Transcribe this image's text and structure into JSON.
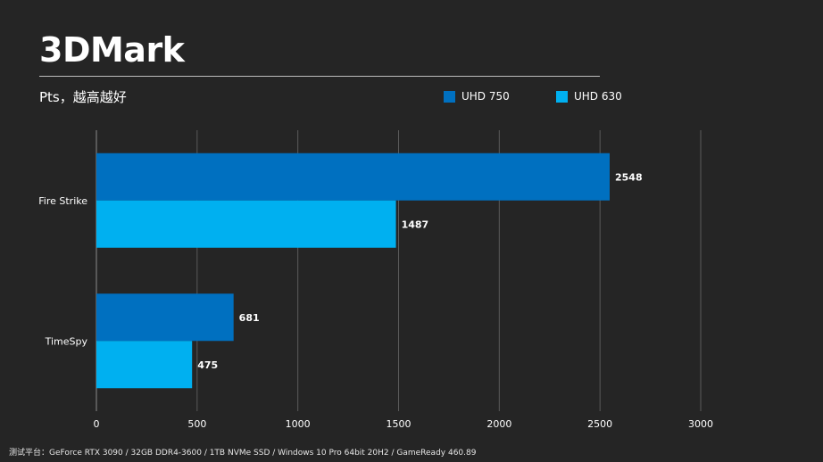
{
  "chart_data": {
    "type": "bar",
    "orientation": "horizontal",
    "title": "3DMark",
    "subtitle": "Pts，越高越好",
    "categories": [
      "Fire Strike",
      "TimeSpy"
    ],
    "series": [
      {
        "name": "UHD 750",
        "color": "#0070c0",
        "values": [
          2548,
          681
        ]
      },
      {
        "name": "UHD 630",
        "color": "#00b0f0",
        "values": [
          1487,
          475
        ]
      }
    ],
    "xlim": [
      0,
      3000
    ],
    "xticks": [
      0,
      500,
      1000,
      1500,
      2000,
      2500,
      3000
    ],
    "grid": true,
    "legend_position": "top-right"
  },
  "footer": "测试平台：GeForce RTX 3090 / 32GB DDR4-3600 / 1TB NVMe SSD / Windows 10 Pro 64bit 20H2 / GameReady 460.89"
}
